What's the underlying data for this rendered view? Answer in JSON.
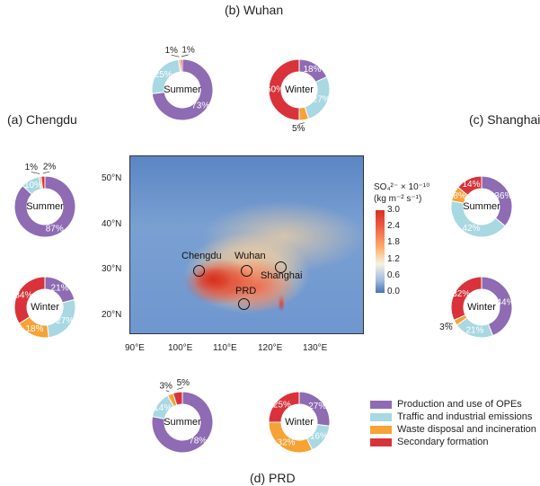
{
  "titles": {
    "wuhan": "(b) Wuhan",
    "chengdu": "(a) Chengdu",
    "shanghai": "(c) Shanghai",
    "prd": "(d) PRD"
  },
  "map": {
    "sites": [
      "Chengdu",
      "Wuhan",
      "Shanghai",
      "PRD"
    ],
    "lat_ticks": [
      "50°N",
      "40°N",
      "30°N",
      "20°N"
    ],
    "lon_ticks": [
      "90°E",
      "100°E",
      "110°E",
      "120°E",
      "130°E"
    ],
    "colorbar": {
      "title1": "SO₄²⁻ × 10⁻¹⁰",
      "title2": "(kg m⁻² s⁻¹)",
      "ticks": [
        "3.0",
        "2.4",
        "1.8",
        "1.2",
        "0.6",
        "0.0"
      ],
      "range": [
        0,
        3.0
      ]
    }
  },
  "chart_data": {
    "type": "pie",
    "categories": [
      "Production and use of OPEs",
      "Traffic and industrial emissions",
      "Waste disposal and incineration",
      "Secondary formation"
    ],
    "colors": [
      "#8e6bb3",
      "#a8d8e2",
      "#f7a234",
      "#d9323a"
    ],
    "charts": [
      {
        "site": "Wuhan",
        "season": "Summer",
        "values": [
          73,
          25,
          1,
          1
        ]
      },
      {
        "site": "Wuhan",
        "season": "Winter",
        "values": [
          18,
          27,
          5,
          50
        ]
      },
      {
        "site": "Chengdu",
        "season": "Summer",
        "values": [
          87,
          10,
          1,
          2
        ]
      },
      {
        "site": "Chengdu",
        "season": "Winter",
        "values": [
          21,
          27,
          18,
          34
        ]
      },
      {
        "site": "Shanghai",
        "season": "Summer",
        "values": [
          36,
          42,
          8,
          14
        ]
      },
      {
        "site": "Shanghai",
        "season": "Winter",
        "values": [
          44,
          21,
          3,
          32
        ]
      },
      {
        "site": "PRD",
        "season": "Summer",
        "values": [
          78,
          14,
          3,
          5
        ]
      },
      {
        "site": "PRD",
        "season": "Winter",
        "values": [
          27,
          16,
          32,
          25
        ]
      }
    ]
  }
}
